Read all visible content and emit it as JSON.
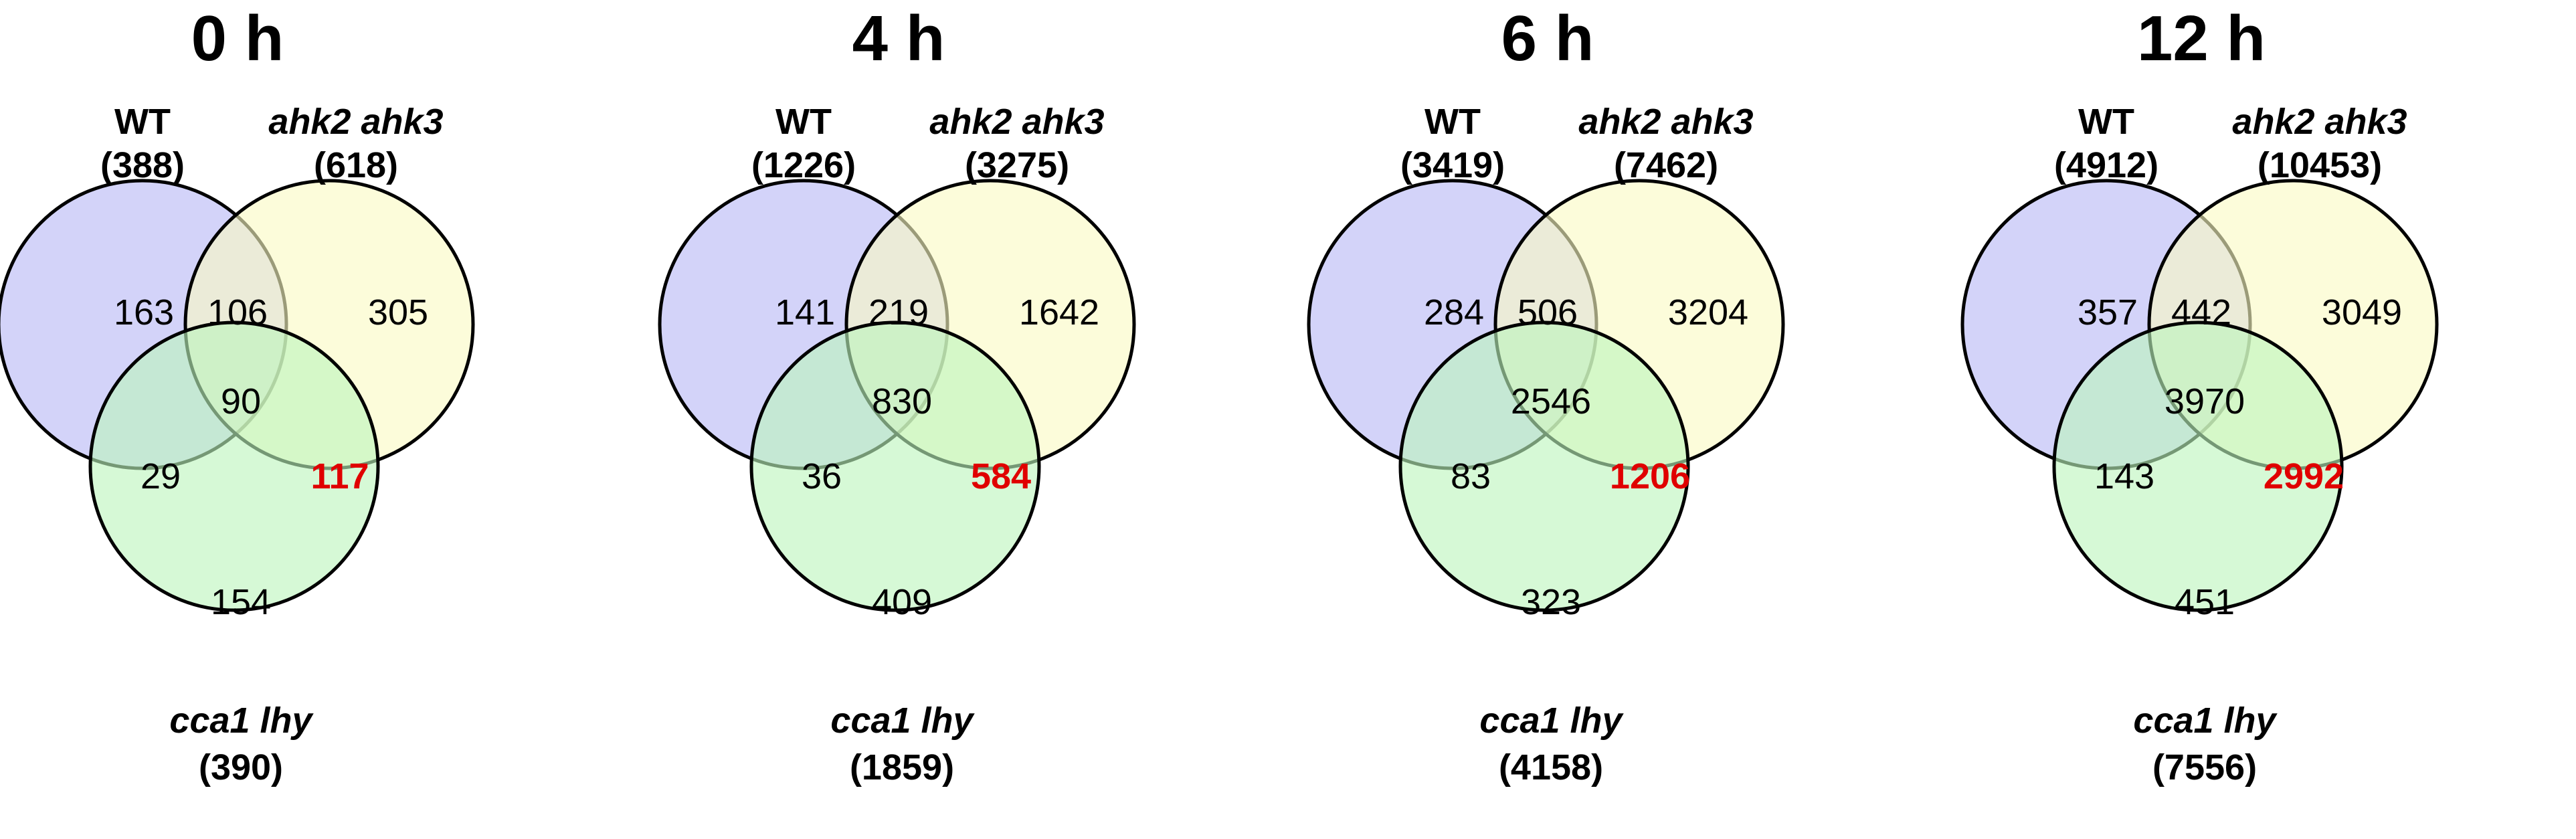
{
  "colors": {
    "wt": "#b8b8f6",
    "ahk": "#fafac4",
    "cca": "#bdf5bd",
    "outline": "#000000",
    "highlight_text": "#e00000"
  },
  "chart_data": {
    "type": "venn",
    "sets": [
      "WT",
      "ahk2 ahk3",
      "cca1 lhy"
    ],
    "panels": [
      {
        "title": "0 h",
        "set_labels": {
          "wt": "WT",
          "ahk": "ahk2 ahk3",
          "cca": "cca1 lhy"
        },
        "totals": {
          "wt": "(388)",
          "ahk": "(618)",
          "cca": "(390)"
        },
        "regions": {
          "wt_only": "163",
          "wt_ahk": "106",
          "ahk_only": "305",
          "all_three": "90",
          "wt_cca": "29",
          "ahk_cca": "117",
          "cca_only": "154"
        }
      },
      {
        "title": "4 h",
        "set_labels": {
          "wt": "WT",
          "ahk": "ahk2 ahk3",
          "cca": "cca1 lhy"
        },
        "totals": {
          "wt": "(1226)",
          "ahk": "(3275)",
          "cca": "(1859)"
        },
        "regions": {
          "wt_only": "141",
          "wt_ahk": "219",
          "ahk_only": "1642",
          "all_three": "830",
          "wt_cca": "36",
          "ahk_cca": "584",
          "cca_only": "409"
        }
      },
      {
        "title": "6 h",
        "set_labels": {
          "wt": "WT",
          "ahk": "ahk2 ahk3",
          "cca": "cca1 lhy"
        },
        "totals": {
          "wt": "(3419)",
          "ahk": "(7462)",
          "cca": "(4158)"
        },
        "regions": {
          "wt_only": "284",
          "wt_ahk": "506",
          "ahk_only": "3204",
          "all_three": "2546",
          "wt_cca": "83",
          "ahk_cca": "1206",
          "cca_only": "323"
        }
      },
      {
        "title": "12 h",
        "set_labels": {
          "wt": "WT",
          "ahk": "ahk2 ahk3",
          "cca": "cca1 lhy"
        },
        "totals": {
          "wt": "(4912)",
          "ahk": "(10453)",
          "cca": "(7556)"
        },
        "regions": {
          "wt_only": "357",
          "wt_ahk": "442",
          "ahk_only": "3049",
          "all_three": "3970",
          "wt_cca": "143",
          "ahk_cca": "2992",
          "cca_only": "451"
        }
      }
    ]
  }
}
